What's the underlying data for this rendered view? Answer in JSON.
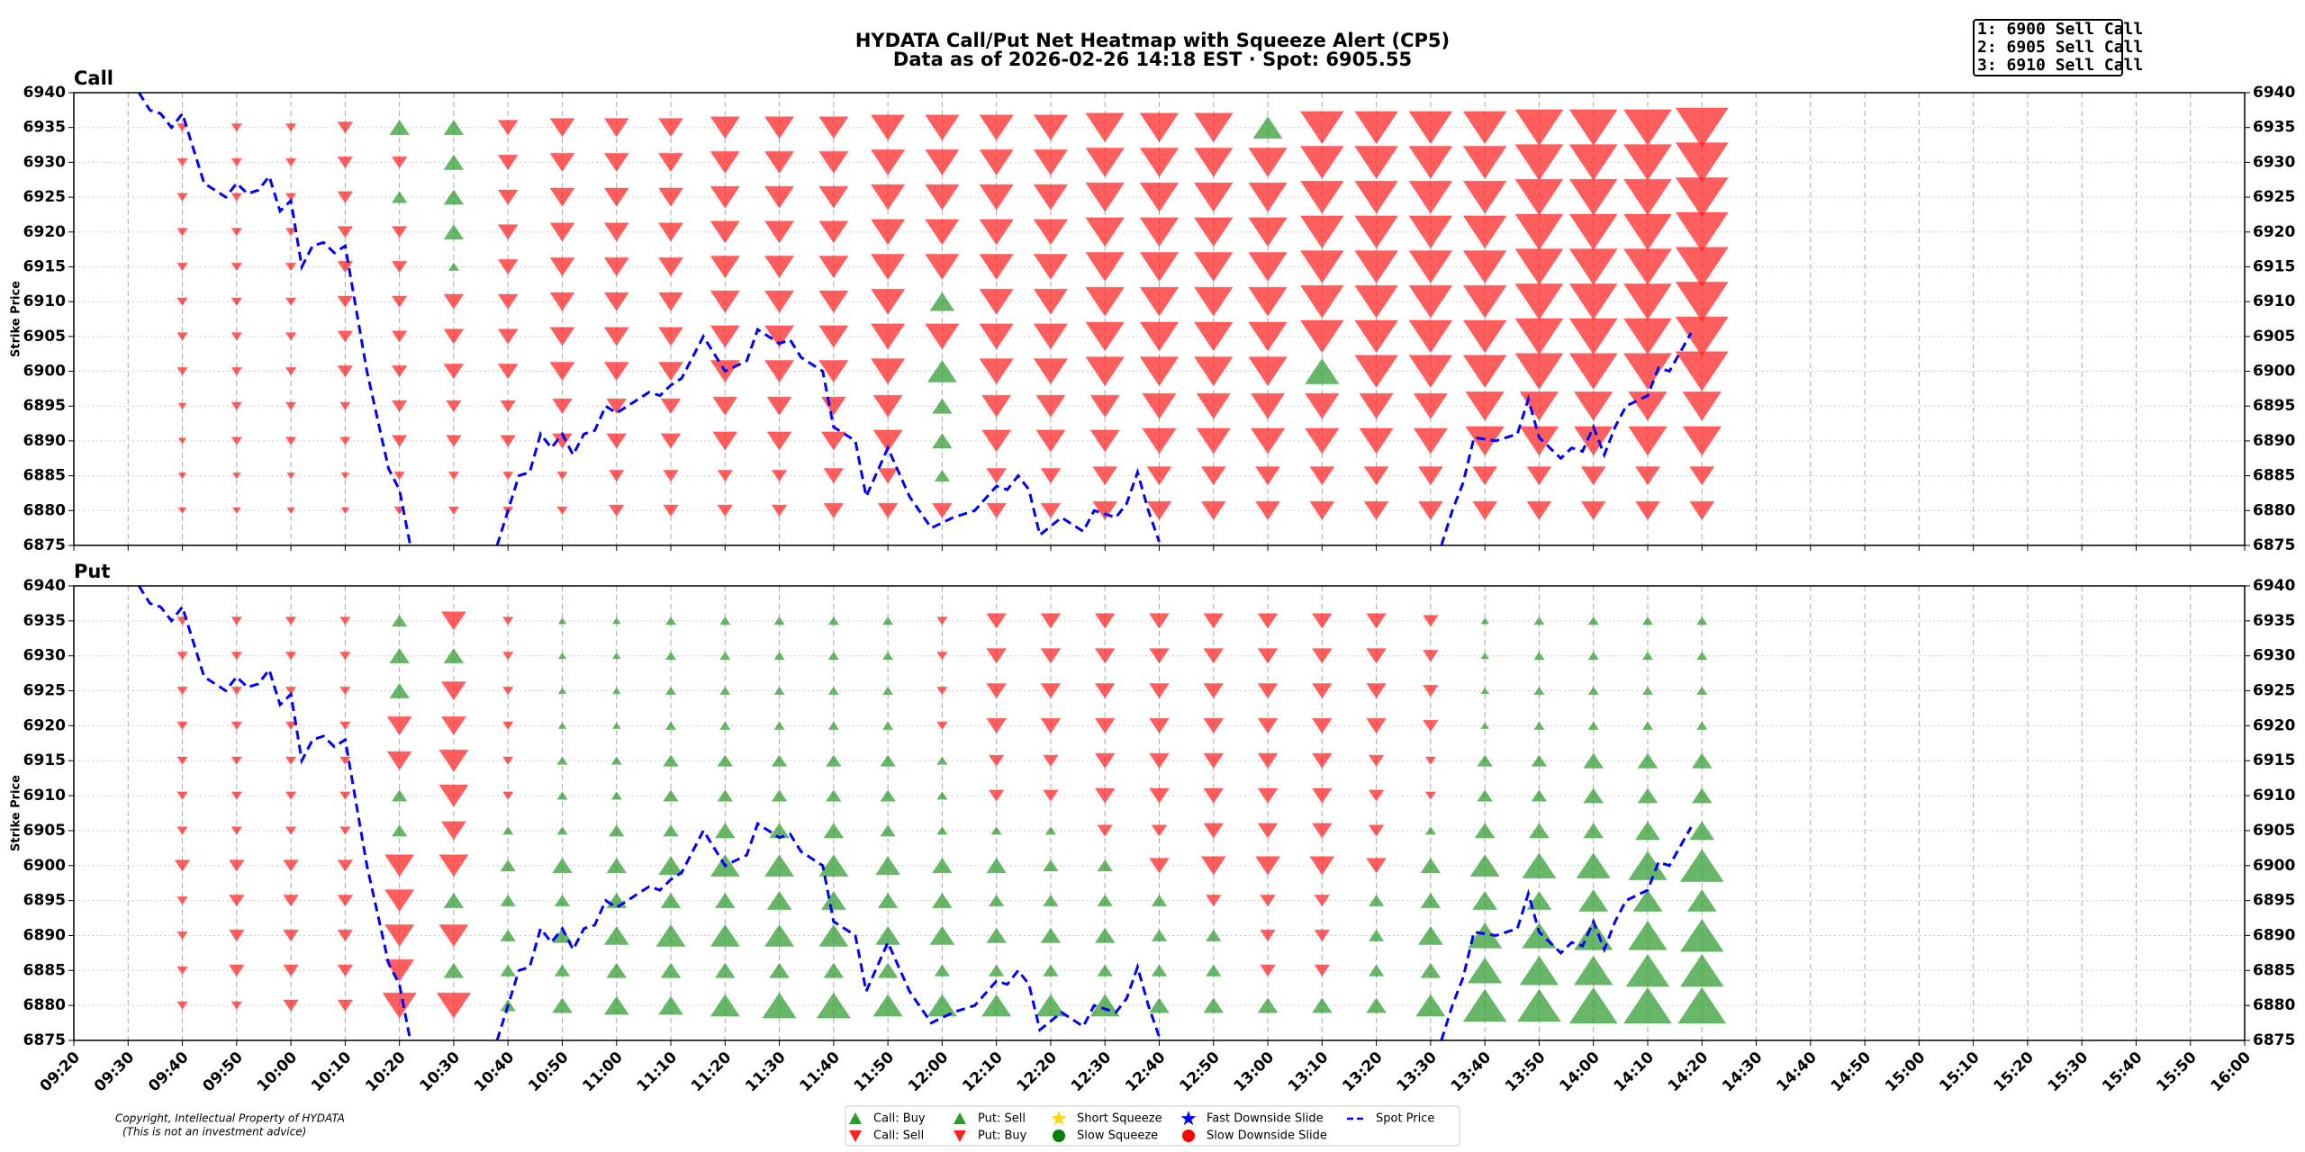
{
  "chart_data": {
    "type": "heatmap-scatter",
    "title": "HYDATA Call/Put Net Heatmap with Squeeze Alert (CP5)",
    "subtitle": "Data as of 2026-02-26 14:18 EST · Spot: 6905.55",
    "ylabel": "Strike Price",
    "alert_box": [
      "1: 6900 Sell Call",
      "2: 6905 Sell Call",
      "3: 6910 Sell Call"
    ],
    "copyright": [
      "Copyright, Intellectual Property of HYDATA",
      "(This is not an investment advice)"
    ],
    "xlim": [
      "09:20",
      "16:00"
    ],
    "xticks": [
      "09:20",
      "09:30",
      "09:40",
      "09:50",
      "10:00",
      "10:10",
      "10:20",
      "10:30",
      "10:40",
      "10:50",
      "11:00",
      "11:10",
      "11:20",
      "11:30",
      "11:40",
      "11:50",
      "12:00",
      "12:10",
      "12:20",
      "12:30",
      "12:40",
      "12:50",
      "13:00",
      "13:10",
      "13:20",
      "13:30",
      "13:40",
      "13:50",
      "14:00",
      "14:10",
      "14:20",
      "14:30",
      "14:40",
      "14:50",
      "15:00",
      "15:10",
      "15:20",
      "15:30",
      "15:40",
      "15:50",
      "16:00"
    ],
    "ylim": [
      6875,
      6940
    ],
    "yticks": [
      6875,
      6880,
      6885,
      6890,
      6895,
      6900,
      6905,
      6910,
      6915,
      6920,
      6925,
      6930,
      6935,
      6940
    ],
    "grid": true,
    "strikes": [
      6935,
      6930,
      6925,
      6920,
      6915,
      6910,
      6905,
      6900,
      6895,
      6890,
      6885,
      6880
    ],
    "times": [
      "09:40",
      "09:50",
      "10:00",
      "10:10",
      "10:20",
      "10:30",
      "10:40",
      "10:50",
      "11:00",
      "11:10",
      "11:20",
      "11:30",
      "11:40",
      "11:50",
      "12:00",
      "12:10",
      "12:20",
      "12:30",
      "12:40",
      "12:50",
      "13:00",
      "13:10",
      "13:20",
      "13:30",
      "13:40",
      "13:50",
      "14:00",
      "14:10",
      "14:20"
    ],
    "legend": [
      {
        "name": "Call: Buy",
        "color": "#2e9a2e",
        "marker": "up"
      },
      {
        "name": "Call: Sell",
        "color": "#ff2020",
        "marker": "down"
      },
      {
        "name": "Put: Sell",
        "color": "#2e9a2e",
        "marker": "up"
      },
      {
        "name": "Put: Buy",
        "color": "#ff2020",
        "marker": "down"
      },
      {
        "name": "Short Squeeze",
        "color": "#ffd700",
        "marker": "star"
      },
      {
        "name": "Slow Squeeze",
        "color": "#008000",
        "marker": "circle"
      },
      {
        "name": "Fast Downside Slide",
        "color": "#0000ff",
        "marker": "star"
      },
      {
        "name": "Slow Downside Slide",
        "color": "#ff0000",
        "marker": "circle"
      },
      {
        "name": "Spot Price",
        "color": "#0000ff",
        "marker": "dash"
      }
    ],
    "panels": [
      {
        "title": "Call",
        "values": [
          [
            -1,
            -1,
            -1,
            -2,
            3,
            3,
            -3,
            -4,
            -4,
            -4,
            -5,
            -5,
            -5,
            -6,
            -6,
            -6,
            -6,
            -7,
            -7,
            -7,
            5,
            -8,
            -8,
            -8,
            -8,
            -9,
            -9,
            -9,
            -10
          ],
          [
            -1,
            -1,
            -1,
            -2,
            -2,
            3,
            -3,
            -4,
            -4,
            -4,
            -5,
            -5,
            -5,
            -6,
            -6,
            -6,
            -6,
            -7,
            -7,
            -7,
            -7,
            -8,
            -8,
            -8,
            -8,
            -9,
            -9,
            -9,
            -10
          ],
          [
            -1,
            -1,
            -1,
            -2,
            2,
            3,
            -3,
            -4,
            -4,
            -4,
            -5,
            -5,
            -5,
            -6,
            -6,
            -6,
            -6,
            -7,
            -7,
            -7,
            -7,
            -8,
            -8,
            -8,
            -8,
            -9,
            -9,
            -9,
            -10
          ],
          [
            -1,
            -1,
            -1,
            -2,
            -2,
            3,
            -3,
            -4,
            -4,
            -4,
            -5,
            -5,
            -5,
            -6,
            -6,
            -6,
            -6,
            -7,
            -7,
            -7,
            -7,
            -8,
            -8,
            -8,
            -8,
            -9,
            -9,
            -9,
            -10
          ],
          [
            -1,
            -1,
            -1,
            -2,
            -2,
            1,
            -3,
            -4,
            -4,
            -4,
            -5,
            -5,
            -5,
            -6,
            -6,
            -6,
            -6,
            -7,
            -7,
            -7,
            -7,
            -8,
            -8,
            -8,
            -8,
            -9,
            -9,
            -9,
            -10
          ],
          [
            -1,
            -1,
            -1,
            -2,
            -2,
            -3,
            -3,
            -4,
            -4,
            -4,
            -5,
            -5,
            -5,
            -6,
            4,
            -6,
            -6,
            -7,
            -7,
            -7,
            -7,
            -8,
            -8,
            -8,
            -8,
            -9,
            -9,
            -9,
            -10
          ],
          [
            -1,
            -1,
            -1,
            -2,
            -2,
            -3,
            -3,
            -4,
            -4,
            -4,
            -5,
            -5,
            -5,
            -6,
            -6,
            -6,
            -6,
            -7,
            -7,
            -7,
            -7,
            -8,
            -8,
            -8,
            -8,
            -9,
            -9,
            -9,
            -10
          ],
          [
            -1,
            -1,
            -1,
            -2,
            -2,
            -3,
            -3,
            -4,
            -4,
            -4,
            -5,
            -5,
            -5,
            -6,
            5,
            -6,
            -6,
            -7,
            -7,
            -7,
            -7,
            6,
            -8,
            -8,
            -8,
            -9,
            -9,
            -9,
            -10
          ],
          [
            -0.5,
            -1,
            -1,
            -1,
            -2,
            -2,
            -2,
            -3,
            -3,
            -3,
            -4,
            -4,
            -4,
            -5,
            3,
            -5,
            -5,
            -5,
            -6,
            -6,
            -6,
            -6,
            -6,
            -6,
            -7,
            -7,
            -7,
            -7,
            -7
          ],
          [
            -0.5,
            -1,
            -1,
            -1,
            -2,
            -2,
            -2,
            -3,
            -3,
            -3,
            -4,
            -4,
            -4,
            -5,
            3,
            -5,
            -5,
            -5,
            -6,
            -6,
            -6,
            -6,
            -6,
            -6,
            -7,
            -7,
            -7,
            -7,
            -7
          ],
          [
            -0.5,
            -0.5,
            -0.5,
            -0.5,
            -1,
            -1,
            -1,
            -1,
            -2,
            -2,
            -2,
            -2,
            -3,
            -3,
            2,
            -3,
            -3,
            -4,
            -4,
            -4,
            -4,
            -4,
            -4,
            -4,
            -4,
            -4,
            -4,
            -4,
            -4
          ],
          [
            -0.5,
            -0.5,
            -0.5,
            -0.5,
            -1,
            -1,
            -1,
            -1,
            -2,
            -2,
            -2,
            -2,
            -3,
            -3,
            -3,
            -3,
            -3,
            -4,
            -4,
            -4,
            -4,
            -4,
            -4,
            -4,
            -4,
            -4,
            -4,
            -4,
            -4
          ]
        ]
      },
      {
        "title": "Put",
        "values": [
          [
            -1,
            -1,
            -1,
            -1,
            2,
            -4,
            -1,
            0.5,
            0.5,
            1,
            1,
            1,
            1,
            1,
            -1,
            -3,
            -3,
            -3,
            -3,
            -3,
            -3,
            -3,
            -3,
            -2,
            0.5,
            1,
            1,
            1,
            1
          ],
          [
            -1,
            -1,
            -1,
            -1,
            3,
            3,
            -1,
            0.5,
            0.5,
            1,
            1,
            1,
            1,
            1,
            -1,
            -3,
            -3,
            -3,
            -3,
            -3,
            -3,
            -3,
            -3,
            -2,
            0.5,
            1,
            1,
            1,
            1
          ],
          [
            -1,
            -1,
            -1,
            -1,
            3,
            -4,
            -1,
            0.5,
            0.5,
            1,
            1,
            1,
            1,
            1,
            -1,
            -3,
            -3,
            -3,
            -3,
            -3,
            -3,
            -3,
            -3,
            -2,
            0.5,
            1,
            1,
            1,
            1
          ],
          [
            -1,
            -1,
            -1,
            -1,
            -4,
            -4,
            -1,
            0.5,
            0.5,
            1,
            1,
            1,
            1,
            1,
            -1,
            -3,
            -3,
            -3,
            -3,
            -3,
            -3,
            -3,
            -3,
            -2,
            0.5,
            1,
            1,
            1,
            1
          ],
          [
            -1,
            -1,
            -1,
            -1,
            -4,
            -5,
            -1,
            1,
            1,
            2,
            2,
            2,
            2,
            2,
            1,
            -2,
            -2,
            -3,
            -3,
            -3,
            -3,
            -3,
            -2,
            -1,
            2,
            2,
            3,
            3,
            3
          ],
          [
            -1,
            -1,
            -1,
            -1,
            2,
            -5,
            -1,
            1,
            1,
            2,
            2,
            2,
            2,
            2,
            1,
            -2,
            -2,
            -3,
            -3,
            -3,
            -3,
            -3,
            -2,
            -1,
            2,
            2,
            3,
            3,
            3
          ],
          [
            -1,
            -1,
            -1,
            -1,
            2,
            -4,
            1,
            1,
            2,
            2,
            3,
            3,
            3,
            2,
            1,
            1,
            1,
            -2,
            -2,
            -3,
            -3,
            -3,
            -2,
            1,
            3,
            3,
            3,
            4,
            4
          ],
          [
            -2,
            -2,
            -2,
            -2,
            -5,
            -5,
            2,
            3,
            3,
            4,
            5,
            5,
            5,
            4,
            3,
            3,
            2,
            2,
            -3,
            -4,
            -4,
            -4,
            -3,
            3,
            5,
            6,
            6,
            7,
            8
          ],
          [
            -1,
            -2,
            -2,
            -2,
            -5,
            3,
            2,
            2,
            3,
            3,
            3,
            4,
            4,
            3,
            3,
            2,
            2,
            2,
            2,
            -2,
            -2,
            -2,
            2,
            3,
            4,
            4,
            5,
            5,
            5
          ],
          [
            -1,
            -2,
            -2,
            -2,
            -5,
            -5,
            2,
            3,
            4,
            5,
            5,
            5,
            5,
            4,
            4,
            3,
            3,
            3,
            2,
            2,
            -2,
            -2,
            2,
            4,
            6,
            6,
            7,
            7,
            8
          ],
          [
            -1,
            -2,
            -2,
            -2,
            -5,
            3,
            2,
            2,
            3,
            3,
            3,
            3,
            3,
            3,
            2,
            2,
            2,
            2,
            2,
            2,
            -2,
            -2,
            2,
            3,
            6,
            7,
            7,
            8,
            8
          ],
          [
            -1,
            -1,
            -2,
            -2,
            -6,
            -6,
            2,
            3,
            4,
            4,
            5,
            6,
            6,
            5,
            5,
            5,
            5,
            5,
            3,
            3,
            3,
            3,
            3,
            5,
            8,
            8,
            9,
            9,
            9
          ]
        ]
      }
    ],
    "spot": {
      "name": "Spot Price",
      "color": "#0000ff",
      "x": [
        "09:32",
        "09:34",
        "09:36",
        "09:38",
        "09:40",
        "09:44",
        "09:48",
        "09:50",
        "09:52",
        "09:54",
        "09:56",
        "09:58",
        "10:00",
        "10:02",
        "10:04",
        "10:06",
        "10:08",
        "10:10",
        "10:14",
        "10:18",
        "10:20",
        "10:22",
        "10:30",
        "10:38",
        "10:42",
        "10:44",
        "10:46",
        "10:48",
        "10:50",
        "10:52",
        "10:54",
        "10:56",
        "10:58",
        "11:00",
        "11:04",
        "11:06",
        "11:08",
        "11:10",
        "11:12",
        "11:16",
        "11:20",
        "11:24",
        "11:26",
        "11:30",
        "11:32",
        "11:34",
        "11:38",
        "11:40",
        "11:44",
        "11:46",
        "11:50",
        "11:54",
        "11:58",
        "12:02",
        "12:06",
        "12:10",
        "12:12",
        "12:14",
        "12:16",
        "12:18",
        "12:22",
        "12:26",
        "12:28",
        "12:32",
        "12:34",
        "12:36",
        "12:38",
        "12:40",
        "13:00",
        "13:32",
        "13:34",
        "13:36",
        "13:38",
        "13:42",
        "13:46",
        "13:48",
        "13:50",
        "13:54",
        "13:56",
        "13:58",
        "14:00",
        "14:02",
        "14:04",
        "14:06",
        "14:10",
        "14:12",
        "14:14",
        "14:18"
      ],
      "values": [
        6940,
        6937.5,
        6937,
        6935,
        6937,
        6927,
        6925,
        6927,
        6925.5,
        6926,
        6928,
        6923,
        6924.5,
        6915,
        6918,
        6918.5,
        6917,
        6918,
        6900,
        6886,
        6883,
        6875,
        null,
        6875,
        6885,
        6885.5,
        6891,
        6889,
        6891,
        6888,
        6891,
        6891.5,
        6895,
        6894,
        6896,
        6897,
        6896.5,
        6898,
        6899,
        6905,
        6900,
        6901.5,
        6906,
        6904,
        6904.5,
        6902,
        6900,
        6892,
        6890,
        6882,
        6889,
        6882,
        6877.5,
        6879,
        6880,
        6883.5,
        6883,
        6885,
        6883,
        6876.5,
        6879,
        6877,
        6880,
        6879,
        6881,
        6885.5,
        6880,
        6875.5,
        null,
        6875,
        6880,
        6884,
        6890.5,
        6890,
        6891,
        6896,
        6890.5,
        6887.5,
        6889,
        6888.5,
        6892,
        6888,
        6892,
        6895,
        6896.5,
        6900.5,
        6900,
        6905.5
      ]
    }
  }
}
